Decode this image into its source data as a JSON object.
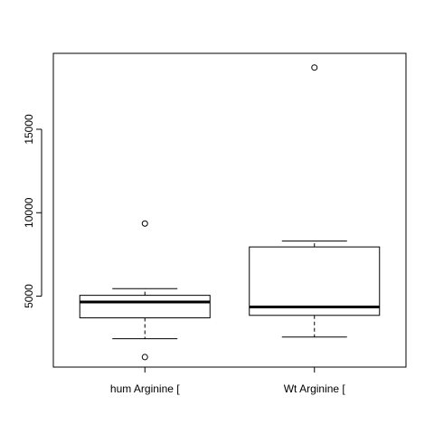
{
  "chart_data": {
    "type": "boxplot",
    "title": "",
    "xlabel": "",
    "ylabel": "",
    "ylim": [
      750,
      19550
    ],
    "yticks": [
      5000,
      10000,
      15000
    ],
    "categories": [
      "hum Arginine [",
      "Wt Arginine ["
    ],
    "boxes": [
      {
        "category": "hum Arginine [",
        "whisker_low": 2450,
        "q1": 3700,
        "median": 4650,
        "q3": 5050,
        "whisker_high": 5450,
        "outliers": [
          9350,
          1350
        ]
      },
      {
        "category": "Wt Arginine [",
        "whisker_low": 2550,
        "q1": 3850,
        "median": 4350,
        "q3": 7950,
        "whisker_high": 8300,
        "outliers": [
          18700
        ]
      }
    ],
    "grid": false,
    "legend": "none"
  }
}
